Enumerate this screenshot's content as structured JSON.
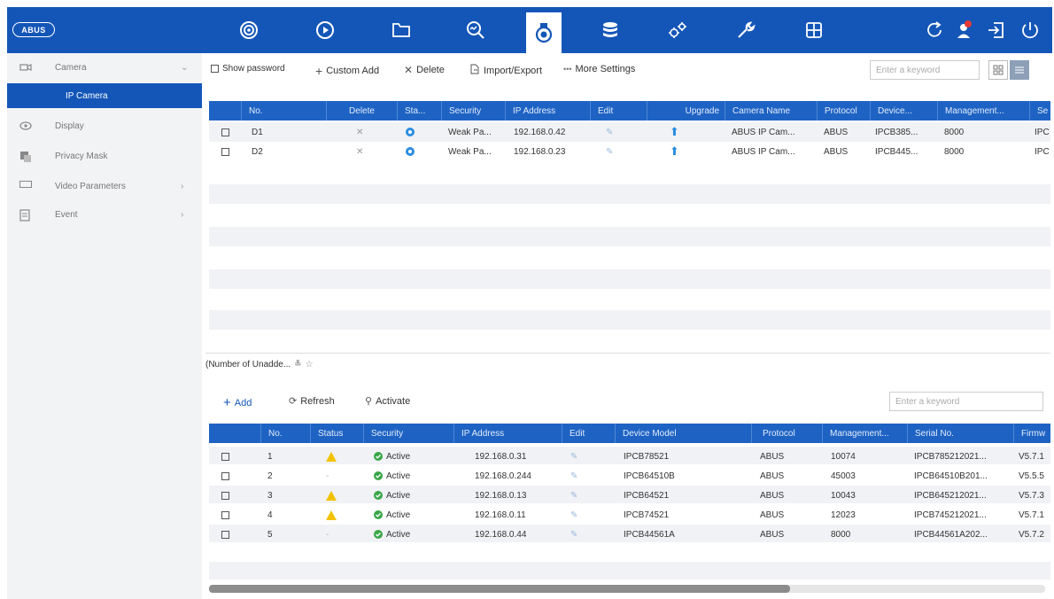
{
  "brand": {
    "logo_text": "ABUS"
  },
  "topnav": {
    "icons": [
      "live-view-icon",
      "playback-icon",
      "file-management-icon",
      "smart-search-icon",
      "camera-icon",
      "storage-icon",
      "system-settings-icon",
      "maintenance-icon",
      "split-view-icon"
    ],
    "active": "camera-icon",
    "right_icons": [
      "refresh-icon",
      "user-alert-icon",
      "logout-icon",
      "power-icon"
    ]
  },
  "sidebar": {
    "items": [
      {
        "label": "Camera",
        "icon": "camera-icon",
        "expanded": true
      },
      {
        "label": "IP Camera",
        "selected": true
      },
      {
        "label": "Display",
        "icon": "display-icon"
      },
      {
        "label": "Privacy Mask",
        "icon": "privacy-mask-icon"
      },
      {
        "label": "Video Parameters",
        "icon": "video-parameters-icon"
      },
      {
        "label": "Event",
        "icon": "event-icon"
      }
    ]
  },
  "toolbar": {
    "show_password": "Show password",
    "custom_add": "Custom Add",
    "delete": "Delete",
    "import_export": "Import/Export",
    "more_settings": "More Settings",
    "search_placeholder": "Enter a keyword"
  },
  "added_table": {
    "columns": [
      "No.",
      "Delete",
      "Sta...",
      "Security",
      "IP Address",
      "Edit",
      "Upgrade",
      "Camera Name",
      "Protocol",
      "Device...",
      "Management...",
      "Se"
    ],
    "rows": [
      {
        "no": "D1",
        "security": "Weak Pa...",
        "ip": "192.168.0.42",
        "name": "ABUS IP Cam...",
        "protocol": "ABUS",
        "device": "IPCB385...",
        "mgmt": "8000",
        "serial": "IPC"
      },
      {
        "no": "D2",
        "security": "Weak Pa...",
        "ip": "192.168.0.23",
        "name": "ABUS IP Cam...",
        "protocol": "ABUS",
        "device": "IPCB445...",
        "mgmt": "8000",
        "serial": "IPC"
      }
    ]
  },
  "unadded": {
    "title": "(Number of Unadde...",
    "add": "Add",
    "refresh": "Refresh",
    "activate": "Activate",
    "search_placeholder": "Enter a keyword",
    "columns": [
      "No.",
      "Status",
      "Security",
      "IP Address",
      "Edit",
      "Device Model",
      "Protocol",
      "Management...",
      "Serial No.",
      "Firmw"
    ],
    "rows": [
      {
        "no": "1",
        "status": "warning",
        "security": "Active",
        "ip": "192.168.0.31",
        "model": "IPCB78521",
        "protocol": "ABUS",
        "mgmt": "10074",
        "serial": "IPCB785212021...",
        "fw": "V5.7.1"
      },
      {
        "no": "2",
        "status": "-",
        "security": "Active",
        "ip": "192.168.0.244",
        "model": "IPCB64510B",
        "protocol": "ABUS",
        "mgmt": "45003",
        "serial": "IPCB64510B201...",
        "fw": "V5.5.5"
      },
      {
        "no": "3",
        "status": "warning",
        "security": "Active",
        "ip": "192.168.0.13",
        "model": "IPCB64521",
        "protocol": "ABUS",
        "mgmt": "10043",
        "serial": "IPCB645212021...",
        "fw": "V5.7.3"
      },
      {
        "no": "4",
        "status": "warning",
        "security": "Active",
        "ip": "192.168.0.11",
        "model": "IPCB74521",
        "protocol": "ABUS",
        "mgmt": "12023",
        "serial": "IPCB745212021...",
        "fw": "V5.7.1"
      },
      {
        "no": "5",
        "status": "-",
        "security": "Active",
        "ip": "192.168.0.44",
        "model": "IPCB44561A",
        "protocol": "ABUS",
        "mgmt": "8000",
        "serial": "IPCB44561A202...",
        "fw": "V5.7.2"
      }
    ]
  },
  "colors": {
    "accent": "#1456b8",
    "header": "#1e63c4",
    "active_green": "#3aa648",
    "warning_yellow": "#f2c200"
  }
}
